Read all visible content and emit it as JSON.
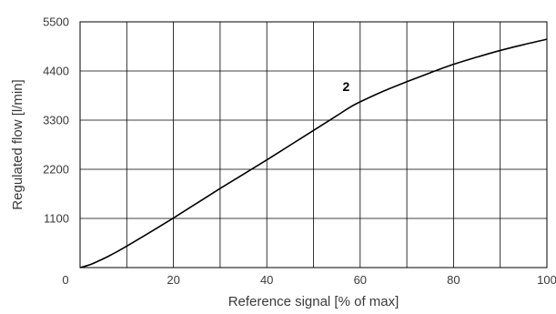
{
  "chart_data": {
    "type": "line",
    "title": "",
    "xlabel": "Reference signal [% of max]",
    "ylabel": "Regulated flow [l/min]",
    "xlim": [
      0,
      100
    ],
    "ylim": [
      0,
      5500
    ],
    "x_ticks": [
      0,
      20,
      40,
      60,
      80,
      100
    ],
    "x_tick_labels": [
      "0",
      "20",
      "40",
      "60",
      "80",
      "100"
    ],
    "y_ticks": [
      0,
      1100,
      2200,
      3300,
      4400,
      5500
    ],
    "y_tick_labels": [
      "0",
      "1100",
      "2200",
      "3300",
      "4400",
      "5500"
    ],
    "x_gridlines": [
      0,
      10,
      20,
      30,
      40,
      50,
      60,
      70,
      80,
      90,
      100
    ],
    "y_gridlines": [
      0,
      1100,
      2200,
      3300,
      4400,
      5500
    ],
    "grid": true,
    "series": [
      {
        "label": "2",
        "label_at": [
          57,
          3950
        ],
        "color": "#000000",
        "x": [
          0,
          2,
          4,
          6,
          8,
          10,
          15,
          20,
          25,
          30,
          35,
          40,
          45,
          50,
          55,
          58,
          60,
          65,
          70,
          75,
          80,
          85,
          90,
          95,
          100
        ],
        "y": [
          0,
          60,
          150,
          250,
          360,
          480,
          790,
          1110,
          1440,
          1770,
          2090,
          2410,
          2740,
          3070,
          3400,
          3600,
          3710,
          3950,
          4160,
          4360,
          4550,
          4710,
          4860,
          4990,
          5110
        ]
      }
    ]
  }
}
